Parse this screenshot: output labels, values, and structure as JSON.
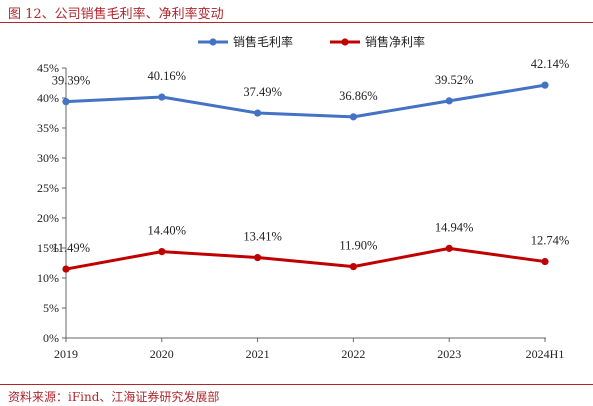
{
  "figure": {
    "title": "图 12、公司销售毛利率、净利率变动",
    "source": "资料来源：iFind、江海证券研究发展部"
  },
  "colors": {
    "accent": "#b1262d",
    "gross_margin": "#4472c4",
    "net_margin": "#c00000"
  },
  "chart_data": {
    "type": "line",
    "title": "",
    "xlabel": "",
    "ylabel": "",
    "categories": [
      "2019",
      "2020",
      "2021",
      "2022",
      "2023",
      "2024H1"
    ],
    "ylim": [
      0,
      45
    ],
    "ytick_values": [
      0,
      5,
      10,
      15,
      20,
      25,
      30,
      35,
      40,
      45
    ],
    "ytick_labels": [
      "0%",
      "5%",
      "10%",
      "15%",
      "20%",
      "25%",
      "30%",
      "35%",
      "40%",
      "45%"
    ],
    "grid": false,
    "legend_position": "top-center",
    "series": [
      {
        "name": "销售毛利率",
        "values": [
          39.39,
          40.16,
          37.49,
          36.86,
          39.52,
          42.14
        ],
        "labels": [
          "39.39%",
          "40.16%",
          "37.49%",
          "36.86%",
          "39.52%",
          "42.14%"
        ]
      },
      {
        "name": "销售净利率",
        "values": [
          11.49,
          14.4,
          13.41,
          11.9,
          14.94,
          12.74
        ],
        "labels": [
          "11.49%",
          "14.40%",
          "13.41%",
          "11.90%",
          "14.94%",
          "12.74%"
        ]
      }
    ]
  }
}
